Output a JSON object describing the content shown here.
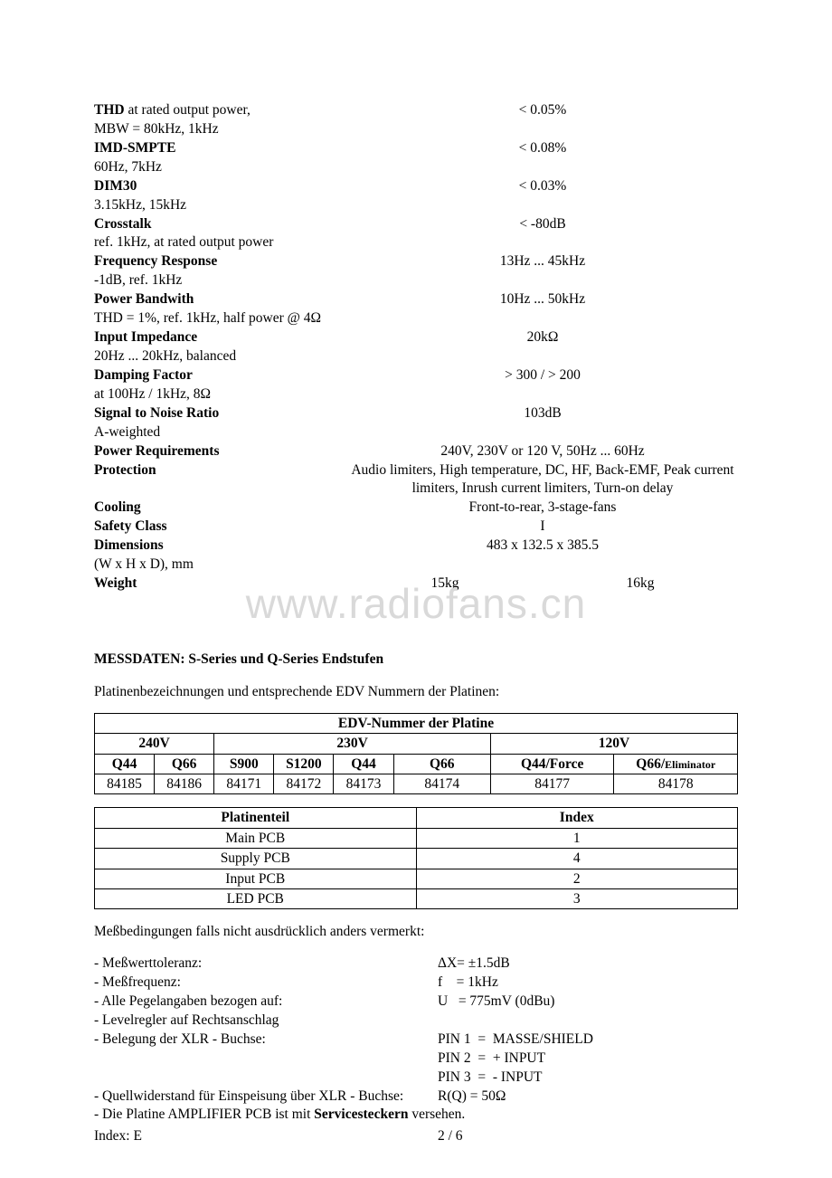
{
  "specs": [
    {
      "label_bold": "THD",
      "label_rest": " at rated output power,",
      "sub": "MBW = 80kHz, 1kHz",
      "value": "< 0.05%"
    },
    {
      "label_bold": "IMD-SMPTE",
      "label_rest": "",
      "sub": "60Hz, 7kHz",
      "value": "< 0.08%"
    },
    {
      "label_bold": "DIM30",
      "label_rest": "",
      "sub": "3.15kHz, 15kHz",
      "value": "< 0.03%"
    },
    {
      "label_bold": "Crosstalk",
      "label_rest": "",
      "sub": "ref. 1kHz, at rated output power",
      "value": "< -80dB"
    },
    {
      "label_bold": "Frequency Response",
      "label_rest": "",
      "sub": "-1dB, ref. 1kHz",
      "value": "13Hz ... 45kHz"
    },
    {
      "label_bold": "Power Bandwith",
      "label_rest": "",
      "sub": "THD = 1%, ref. 1kHz, half power @ 4Ω",
      "value": "10Hz ... 50kHz"
    },
    {
      "label_bold": "Input Impedance",
      "label_rest": "",
      "sub": "20Hz ... 20kHz, balanced",
      "value": "20kΩ"
    },
    {
      "label_bold": "Damping Factor",
      "label_rest": "",
      "sub": "at 100Hz / 1kHz, 8Ω",
      "value": "> 300 / > 200"
    },
    {
      "label_bold": "Signal to Noise Ratio",
      "label_rest": "",
      "sub": "A-weighted",
      "value": "103dB"
    },
    {
      "label_bold": "Power Requirements",
      "label_rest": "",
      "sub": "",
      "value": "240V, 230V or 120 V, 50Hz ... 60Hz"
    },
    {
      "label_bold": "Protection",
      "label_rest": "",
      "sub": "",
      "value": "Audio limiters, High temperature, DC, HF, Back-EMF, Peak current limiters, Inrush current limiters, Turn-on delay",
      "multiline": true
    },
    {
      "label_bold": "Cooling",
      "label_rest": "",
      "sub": "",
      "value": "Front-to-rear, 3-stage-fans"
    },
    {
      "label_bold": "Safety Class",
      "label_rest": "",
      "sub": "",
      "value": "I"
    },
    {
      "label_bold": "Dimensions",
      "label_rest": "",
      "sub": "(W x H x D), mm",
      "value": "483 x 132.5 x 385.5"
    },
    {
      "label_bold": "Weight",
      "label_rest": "",
      "sub": "",
      "split": [
        "15kg",
        "16kg"
      ]
    }
  ],
  "watermark": "www.radiofans.cn",
  "section_title": "MESSDATEN: S-Series und Q-Series Endstufen",
  "intro_text": "Platinenbezeichnungen und entsprechende EDV Nummern der Platinen:",
  "table1": {
    "title": "EDV-Nummer der Platine",
    "voltage_groups": [
      "240V",
      "230V",
      "120V"
    ],
    "headers": [
      "Q44",
      "Q66",
      "S900",
      "S1200",
      "Q44",
      "Q66",
      "Q44/Force",
      "Q66/"
    ],
    "header_small": "Eliminator",
    "values": [
      "84185",
      "84186",
      "84171",
      "84172",
      "84173",
      "84174",
      "84177",
      "84178"
    ],
    "colwidths": [
      "9.3%",
      "9.3%",
      "9.3%",
      "9.3%",
      "9.3%",
      "15.1%",
      "19.2%",
      "19.2%"
    ]
  },
  "table2": {
    "headers": [
      "Platinenteil",
      "Index"
    ],
    "rows": [
      [
        "Main PCB",
        "1"
      ],
      [
        "Supply PCB",
        "4"
      ],
      [
        "Input PCB",
        "2"
      ],
      [
        "LED PCB",
        "3"
      ]
    ]
  },
  "conditions_intro": "Meßbedingungen falls nicht ausdrücklich anders vermerkt:",
  "conditions": [
    {
      "label": "- Meßwerttoleranz:",
      "value": "ΔX= ±1.5dB"
    },
    {
      "label": "- Meßfrequenz:",
      "value": "f    = 1kHz"
    },
    {
      "label": "- Alle Pegelangaben bezogen auf:",
      "value": "U   = 775mV (0dBu)"
    },
    {
      "label": "- Levelregler auf Rechtsanschlag",
      "value": ""
    },
    {
      "label": "- Belegung der XLR - Buchse:",
      "value": "PIN 1  =  MASSE/SHIELD"
    },
    {
      "label": "",
      "value": "PIN 2  =  + INPUT"
    },
    {
      "label": "",
      "value": "PIN 3  =  - INPUT"
    },
    {
      "label": "- Quellwiderstand für Einspeisung über XLR - Buchse:",
      "value": "R(Q) = 50Ω"
    }
  ],
  "final_line_pre": "- Die Platine AMPLIFIER PCB ist mit ",
  "final_line_bold": "Servicesteckern",
  "final_line_post": " versehen.",
  "footer": {
    "left": "Index: E",
    "center": "2 / 6"
  }
}
